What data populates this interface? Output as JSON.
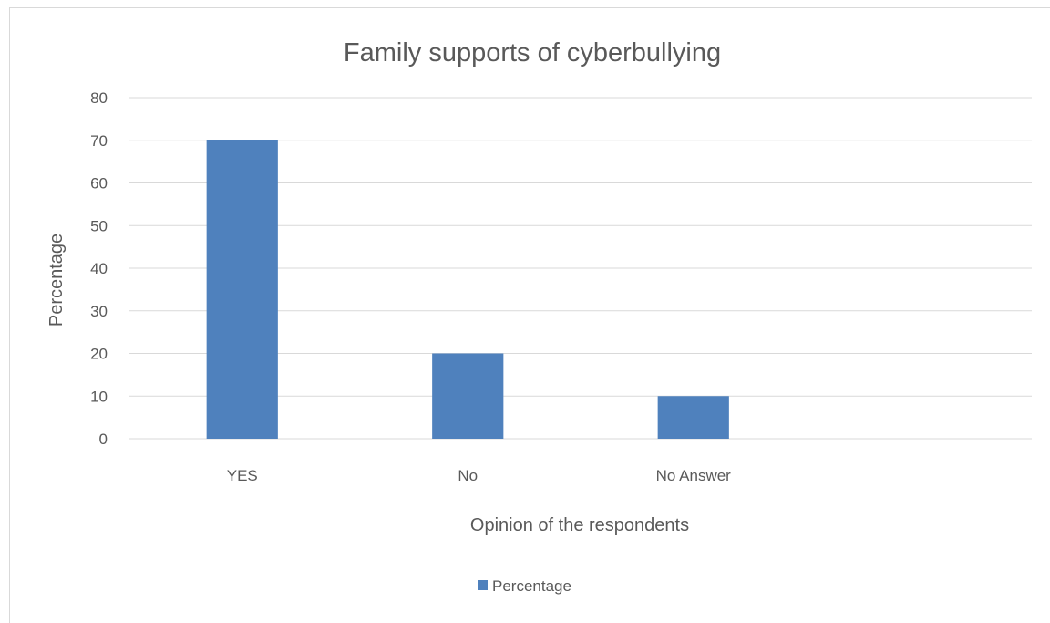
{
  "chart_data": {
    "type": "bar",
    "title": "Family supports of cyberbullying",
    "xlabel": "Opinion of the respondents",
    "ylabel": "Percentage",
    "categories": [
      "YES",
      "No",
      "No Answer",
      ""
    ],
    "series": [
      {
        "name": "Percentage",
        "values": [
          70,
          20,
          10,
          null
        ]
      }
    ],
    "ylim": [
      0,
      80
    ],
    "yticks": [
      "0",
      "10",
      "20",
      "30",
      "40",
      "50",
      "60",
      "70",
      "80"
    ],
    "grid": true,
    "legend_position": "bottom",
    "colors": {
      "bar": "#4f81bd",
      "grid": "#d9d9d9",
      "text": "#595959"
    }
  }
}
